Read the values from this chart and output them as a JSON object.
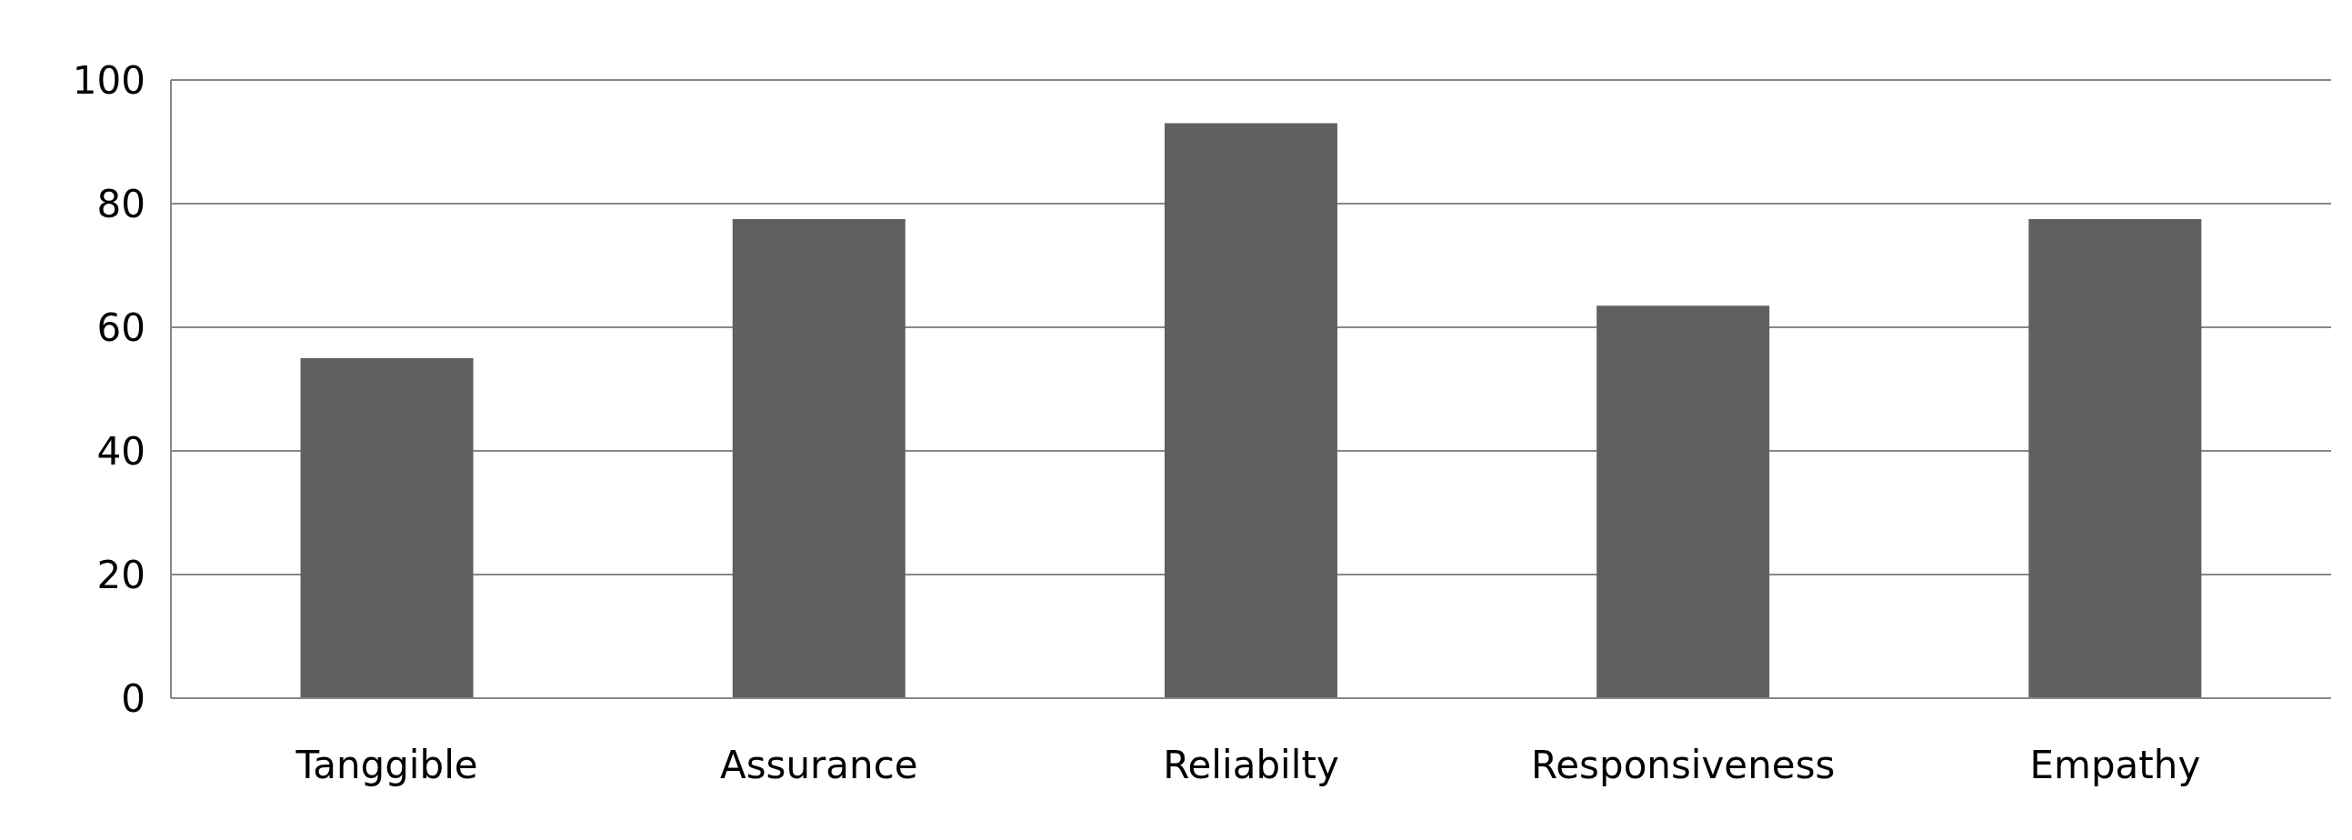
{
  "chart_data": {
    "type": "bar",
    "categories": [
      "Tanggible",
      "Assurance",
      "Reliabilty",
      "Responsiveness",
      "Empathy"
    ],
    "values": [
      55,
      77.5,
      93,
      63.5,
      77.5
    ],
    "color": "#606060",
    "ylim": [
      0,
      100
    ],
    "yticks": [
      0,
      20,
      40,
      60,
      80,
      100
    ],
    "grid": "y"
  }
}
